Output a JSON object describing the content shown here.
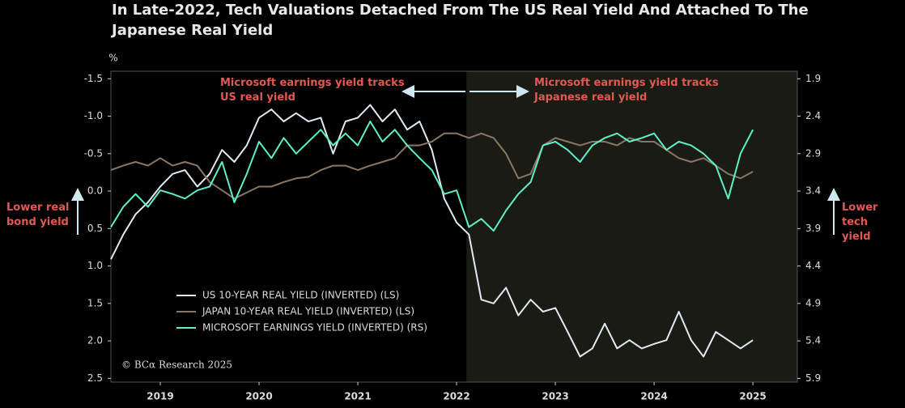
{
  "chart_data": {
    "type": "line",
    "title": "In Late-2022, Tech Valuations Detached From The US Real Yield And Attached To The Japanese Real Yield",
    "y_unit": "%",
    "left_note": "Lower real bond yield",
    "right_note": "Lower tech yield",
    "annotation_left": "Microsoft earnings yield tracks US real yield",
    "annotation_right": "Microsoft earnings yield tracks Japanese real yield",
    "source": "© BCα Research 2025",
    "shade_from": 2022.6,
    "xlim": [
      2019,
      2025.95
    ],
    "xticks": [
      {
        "value": 2019.5,
        "label": "2019"
      },
      {
        "value": 2020.5,
        "label": "2020"
      },
      {
        "value": 2021.5,
        "label": "2021"
      },
      {
        "value": 2022.5,
        "label": "2022"
      },
      {
        "value": 2023.5,
        "label": "2023"
      },
      {
        "value": 2024.5,
        "label": "2024"
      },
      {
        "value": 2025.5,
        "label": "2025"
      }
    ],
    "ylim": [
      2.55,
      -1.6
    ],
    "yticks": [
      -1.5,
      {
        "value": -1,
        "label": "-1.0"
      },
      -0.5,
      {
        "value": 0,
        "label": "0.0"
      },
      0.5,
      {
        "value": 1,
        "label": "1.0"
      },
      1.5,
      {
        "value": 2,
        "label": "2.0"
      },
      2.5
    ],
    "y2lim": [
      5.95,
      1.8
    ],
    "y2ticks": [
      1.9,
      2.4,
      2.9,
      3.4,
      3.9,
      4.4,
      4.9,
      5.4,
      5.9
    ],
    "x": [
      2019,
      2019.125,
      2019.25,
      2019.375,
      2019.5,
      2019.625,
      2019.75,
      2019.875,
      2020,
      2020.125,
      2020.25,
      2020.375,
      2020.5,
      2020.625,
      2020.75,
      2020.875,
      2021,
      2021.125,
      2021.25,
      2021.375,
      2021.5,
      2021.625,
      2021.75,
      2021.875,
      2022,
      2022.125,
      2022.25,
      2022.375,
      2022.5,
      2022.625,
      2022.75,
      2022.875,
      2023,
      2023.125,
      2023.25,
      2023.375,
      2023.5,
      2023.625,
      2023.75,
      2023.875,
      2024,
      2024.125,
      2024.25,
      2024.375,
      2024.5,
      2024.625,
      2024.75,
      2024.875,
      2025,
      2025.125,
      2025.25,
      2025.375,
      2025.5
    ],
    "series": [
      {
        "name": "US 10-YEAR REAL YIELD (INVERTED) (LS)",
        "color": "#dfeaf2",
        "values": [
          0.91,
          0.58,
          0.31,
          0.15,
          -0.06,
          -0.23,
          -0.28,
          -0.06,
          -0.23,
          -0.55,
          -0.39,
          -0.61,
          -0.98,
          -1.09,
          -0.93,
          -1.04,
          -0.93,
          -0.98,
          -0.5,
          -0.93,
          -0.98,
          -1.15,
          -0.93,
          -1.09,
          -0.82,
          -0.93,
          -0.55,
          0.1,
          0.42,
          0.58,
          1.45,
          1.5,
          1.29,
          1.66,
          1.45,
          1.61,
          1.56,
          1.88,
          2.21,
          2.1,
          1.77,
          2.1,
          1.99,
          2.1,
          2.04,
          1.99,
          1.61,
          1.99,
          2.21,
          1.88,
          1.99,
          2.1,
          1.99
        ]
      },
      {
        "name": "JAPAN 10-YEAR REAL YIELD (INVERTED) (LS)",
        "color": "#8a7664",
        "values": [
          -0.28,
          -0.34,
          -0.39,
          -0.34,
          -0.44,
          -0.34,
          -0.39,
          -0.34,
          -0.12,
          -0.01,
          0.1,
          0.02,
          -0.06,
          -0.06,
          -0.12,
          -0.17,
          -0.19,
          -0.28,
          -0.34,
          -0.34,
          -0.28,
          -0.34,
          -0.39,
          -0.44,
          -0.61,
          -0.61,
          -0.66,
          -0.77,
          -0.77,
          -0.71,
          -0.77,
          -0.71,
          -0.5,
          -0.17,
          -0.23,
          -0.61,
          -0.71,
          -0.66,
          -0.61,
          -0.66,
          -0.66,
          -0.61,
          -0.71,
          -0.66,
          -0.66,
          -0.55,
          -0.44,
          -0.39,
          -0.44,
          -0.34,
          -0.23,
          -0.17,
          -0.26
        ]
      },
      {
        "name": "MICROSOFT EARNINGS YIELD (INVERTED) (RS)",
        "color": "#5ef0c8",
        "axis": "y2",
        "values": [
          3.88,
          3.61,
          3.44,
          3.61,
          3.39,
          3.44,
          3.5,
          3.39,
          3.34,
          3.01,
          3.55,
          3.17,
          2.74,
          2.96,
          2.69,
          2.9,
          2.74,
          2.58,
          2.79,
          2.63,
          2.79,
          2.47,
          2.74,
          2.58,
          2.79,
          2.96,
          3.12,
          3.44,
          3.39,
          3.88,
          3.77,
          3.93,
          3.66,
          3.44,
          3.28,
          2.79,
          2.74,
          2.85,
          3.01,
          2.79,
          2.69,
          2.63,
          2.74,
          2.69,
          2.63,
          2.85,
          2.74,
          2.79,
          2.9,
          3.06,
          3.5,
          2.9,
          2.58
        ]
      }
    ]
  }
}
